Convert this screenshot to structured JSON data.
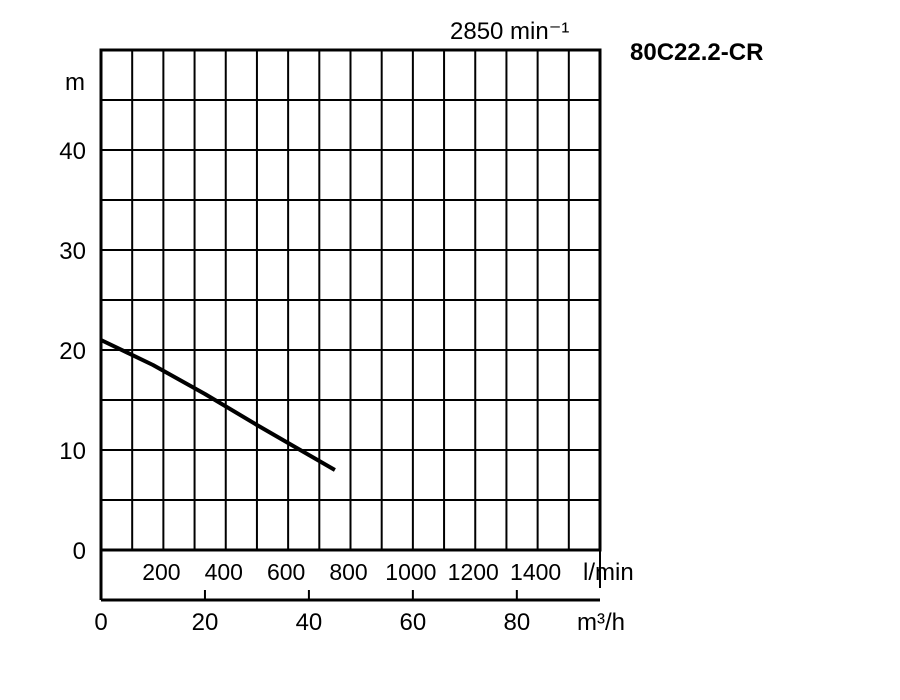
{
  "chart_data": {
    "type": "line",
    "title": "80C22.2-CR",
    "speed_label": "2850 min⁻¹",
    "ylabel": "m",
    "xlabel_flow_lmin": "l/min",
    "xlabel_flow_m3h": "m³/h",
    "ylim": [
      0,
      50
    ],
    "xlim_m3h": [
      0,
      96
    ],
    "y_ticks": [
      "0",
      "10",
      "20",
      "30",
      "40"
    ],
    "lmin_ticks": [
      {
        "label": "200",
        "value": 200
      },
      {
        "label": "400",
        "value": 400
      },
      {
        "label": "600",
        "value": 600
      },
      {
        "label": "800",
        "value": 800
      },
      {
        "label": "1000",
        "value": 1000
      },
      {
        "label": "1200",
        "value": 1200
      },
      {
        "label": "1400",
        "value": 1400
      }
    ],
    "m3h_ticks": [
      {
        "label": "0",
        "value": 0
      },
      {
        "label": "20",
        "value": 20
      },
      {
        "label": "40",
        "value": 40
      },
      {
        "label": "60",
        "value": 60
      },
      {
        "label": "80",
        "value": 80
      }
    ],
    "grid": true,
    "series": [
      {
        "x": [
          0,
          10,
          20,
          30,
          40,
          45
        ],
        "y": [
          21,
          18.5,
          15.6,
          12.5,
          9.5,
          8
        ]
      }
    ]
  }
}
